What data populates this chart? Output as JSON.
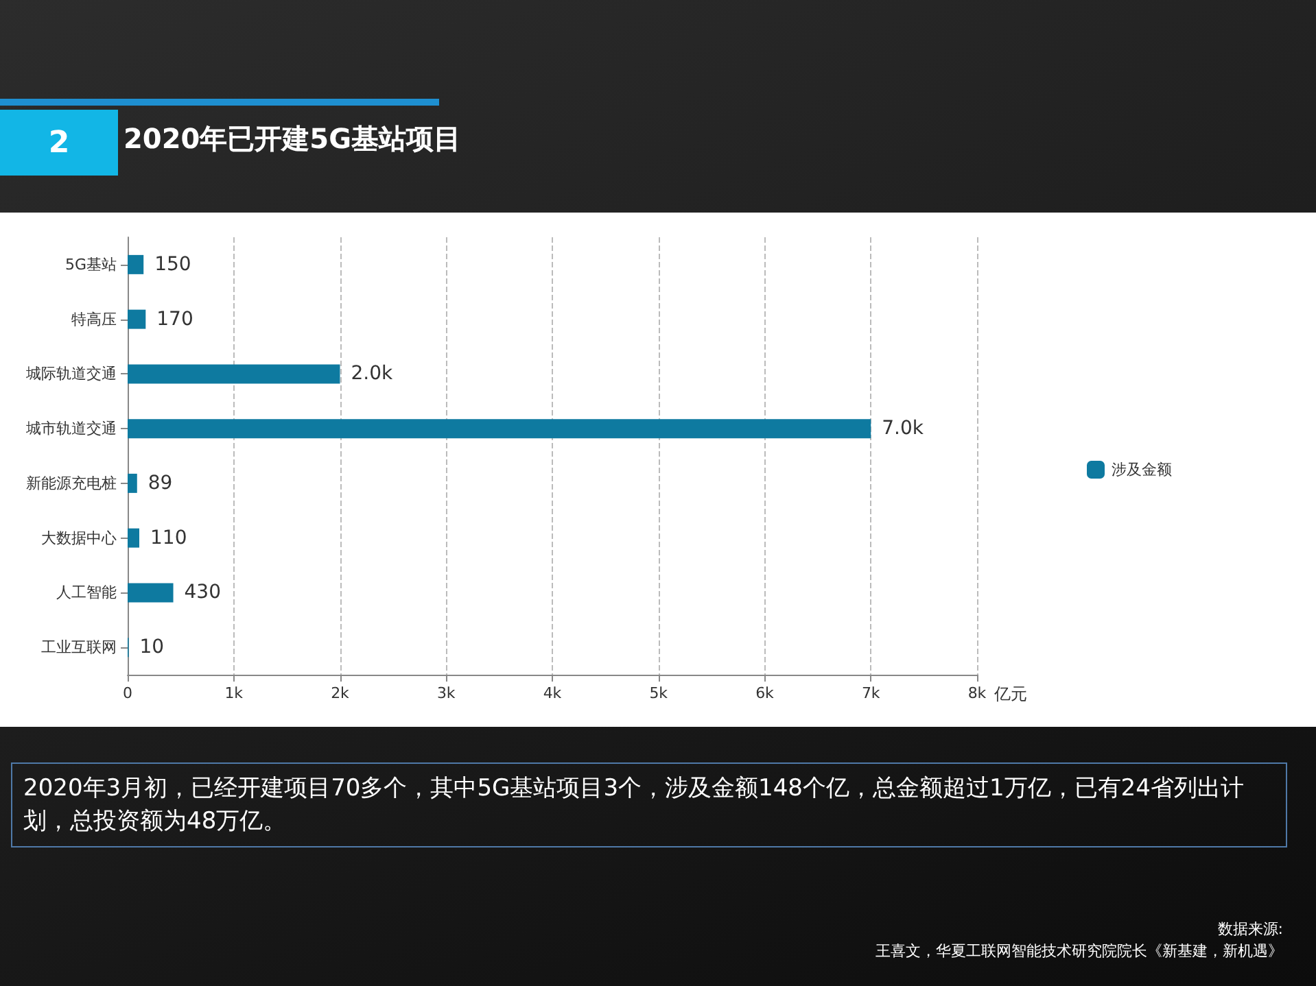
{
  "chart_data": {
    "type": "bar",
    "orientation": "horizontal",
    "title": "2020年已开建5G基站项目",
    "xlabel": "亿元",
    "categories": [
      "5G基站",
      "特高压",
      "城际轨道交通",
      "城市轨道交通",
      "新能源充电桩",
      "大数据中心",
      "人工智能",
      "工业互联网"
    ],
    "series": [
      {
        "name": "涉及金额",
        "color": "#0e7aa0",
        "values": [
          150,
          170,
          2000,
          7000,
          89,
          110,
          430,
          10
        ],
        "value_labels": [
          "150",
          "170",
          "2.0k",
          "7.0k",
          "89",
          "110",
          "430",
          "10"
        ]
      }
    ],
    "xlim": [
      0,
      8000
    ],
    "xticks": [
      0,
      {
        "value": 1000,
        "label": "1k"
      },
      {
        "value": 2000,
        "label": "2k"
      },
      {
        "value": 3000,
        "label": "3k"
      },
      {
        "value": 4000,
        "label": "4k"
      },
      {
        "value": 5000,
        "label": "5k"
      },
      {
        "value": 6000,
        "label": "6k"
      },
      {
        "value": 7000,
        "label": "7k"
      },
      {
        "value": 8000,
        "label": "8k"
      }
    ],
    "grid": "x",
    "legend": "right",
    "annotations": [
      "2",
      "2020年3月初，已经开建项目70多个，其中5G基站项目3个，涉及金额148个亿，总金额超过1万亿，已有24省列出计划，总投资额为48万亿。",
      "数据来源:",
      "王喜文，华夏工联网智能技术研究院院长《新基建，新机遇》"
    ]
  }
}
